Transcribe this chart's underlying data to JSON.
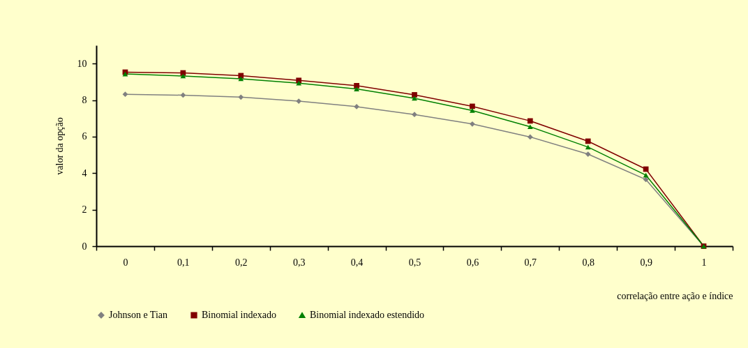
{
  "chart_data": {
    "type": "line",
    "xlabel": "correlação entre ação e índice",
    "ylabel": "valor da opção",
    "categories": [
      "0",
      "0,1",
      "0,2",
      "0,3",
      "0,4",
      "0,5",
      "0,6",
      "0,7",
      "0,8",
      "0,9",
      "1"
    ],
    "series": [
      {
        "name": "Johnson e Tian",
        "color": "#808080",
        "marker": "diamond",
        "values": [
          8.32,
          8.27,
          8.16,
          7.94,
          7.64,
          7.21,
          6.69,
          5.98,
          5.04,
          3.65,
          0
        ]
      },
      {
        "name": "Binomial indexado",
        "color": "#800000",
        "marker": "square",
        "values": [
          9.53,
          9.49,
          9.34,
          9.08,
          8.79,
          8.29,
          7.66,
          6.86,
          5.75,
          4.22,
          0
        ]
      },
      {
        "name": "Binomial indexado estendido",
        "color": "#008000",
        "marker": "triangle",
        "values": [
          9.43,
          9.32,
          9.17,
          8.93,
          8.61,
          8.1,
          7.43,
          6.54,
          5.43,
          3.89,
          0
        ]
      }
    ],
    "ylim": [
      0,
      11
    ],
    "yticks": [
      0,
      2,
      4,
      6,
      8,
      10
    ],
    "grid": false,
    "legend": "bottom"
  }
}
